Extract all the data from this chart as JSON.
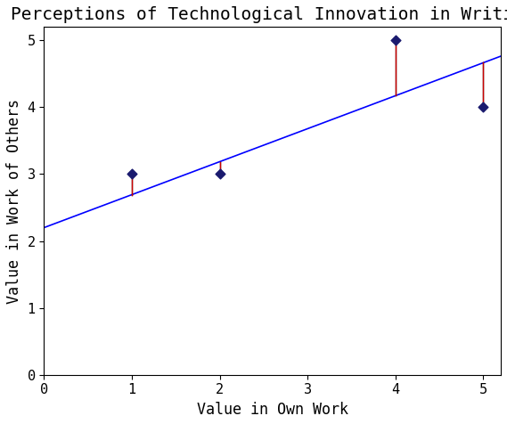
{
  "title": "Perceptions of Technological Innovation in Writing",
  "xlabel": "Value in Own Work",
  "ylabel": "Value in Work of Others",
  "xlim": [
    0,
    5.2
  ],
  "ylim": [
    0,
    5.2
  ],
  "xticks": [
    0,
    1,
    2,
    3,
    4,
    5
  ],
  "yticks": [
    0,
    1,
    2,
    3,
    4,
    5
  ],
  "scatter_x": [
    1,
    2,
    4,
    5
  ],
  "scatter_y": [
    3,
    3,
    5,
    4
  ],
  "scatter_color": "#1a1a6e",
  "scatter_marker": "D",
  "scatter_size": 30,
  "reg_slope": 0.493,
  "reg_intercept": 2.2,
  "reg_color": "blue",
  "reg_linewidth": 1.2,
  "residual_red_color": "red",
  "residual_black_color": "black",
  "residual_linewidth": 1.0,
  "title_fontsize": 14,
  "label_fontsize": 12,
  "tick_fontsize": 11,
  "background_color": "#ffffff",
  "figsize": [
    5.69,
    4.76
  ],
  "dpi": 100
}
